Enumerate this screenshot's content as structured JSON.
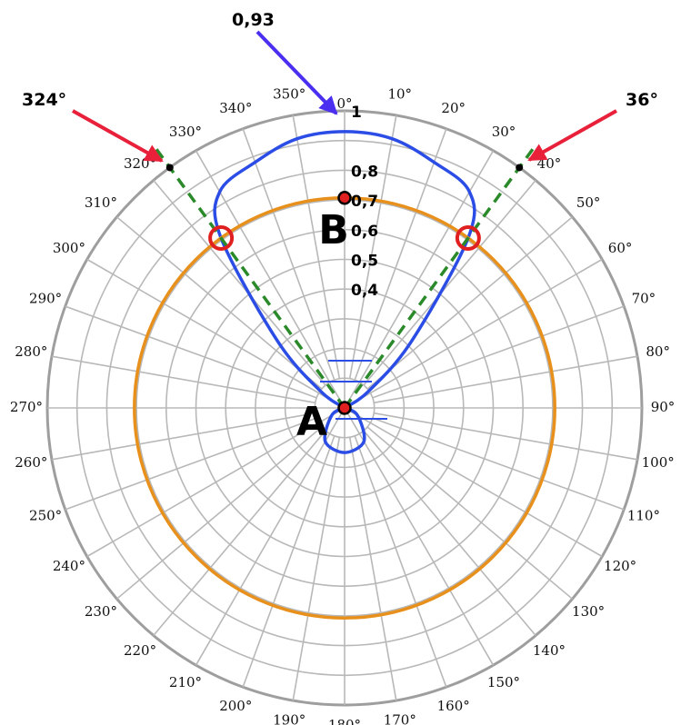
{
  "chart_data": {
    "type": "polar",
    "angle_unit": "degrees",
    "zero_direction": "top",
    "direction": "clockwise",
    "radial_range": [
      0,
      1
    ],
    "angle_ticks": [
      "0°",
      "10°",
      "20°",
      "30°",
      "40°",
      "50°",
      "60°",
      "70°",
      "80°",
      "90°",
      "100°",
      "110°",
      "120°",
      "130°",
      "140°",
      "150°",
      "160°",
      "170°",
      "180°",
      "190°",
      "200°",
      "210°",
      "220°",
      "230°",
      "240°",
      "250°",
      "260°",
      "270°",
      "280°",
      "290°",
      "300°",
      "310°",
      "320°",
      "330°",
      "340°",
      "350°"
    ],
    "radial_tick_labels": [
      {
        "text": "1",
        "r": 1.0
      },
      {
        "text": "0,8",
        "r": 0.8
      },
      {
        "text": "0,7",
        "r": 0.7
      },
      {
        "text": "0,6",
        "r": 0.6
      },
      {
        "text": "0,5",
        "r": 0.5
      },
      {
        "text": "0,4",
        "r": 0.4
      }
    ],
    "grid": true,
    "grid_rings": [
      0.1,
      0.2,
      0.3,
      0.4,
      0.5,
      0.6,
      0.7,
      0.8,
      0.9,
      1.0
    ],
    "series": [
      {
        "kind": "pattern",
        "color": "#2b4de6",
        "points": [
          {
            "angle": 0,
            "r": 0.93
          },
          {
            "angle": 10,
            "r": 0.92
          },
          {
            "angle": 20,
            "r": 0.88
          },
          {
            "angle": 30,
            "r": 0.84
          },
          {
            "angle": 36,
            "r": 0.707
          },
          {
            "angle": 45,
            "r": 0.32
          },
          {
            "angle": 55,
            "r": 0.1
          },
          {
            "angle": 60,
            "r": 0.0
          },
          {
            "angle": 90,
            "r": 0.0
          },
          {
            "angle": 120,
            "r": 0.05
          },
          {
            "angle": 150,
            "r": 0.13
          },
          {
            "angle": 180,
            "r": 0.15
          },
          {
            "angle": 210,
            "r": 0.13
          },
          {
            "angle": 240,
            "r": 0.05
          },
          {
            "angle": 270,
            "r": 0.0
          },
          {
            "angle": 300,
            "r": 0.0
          },
          {
            "angle": 305,
            "r": 0.1
          },
          {
            "angle": 315,
            "r": 0.32
          },
          {
            "angle": 324,
            "r": 0.707
          },
          {
            "angle": 330,
            "r": 0.84
          },
          {
            "angle": 340,
            "r": 0.88
          },
          {
            "angle": 350,
            "r": 0.92
          }
        ]
      },
      {
        "kind": "circle",
        "color": "#e8901c",
        "r": 0.707
      }
    ],
    "reference_lines": [
      {
        "angle": 36,
        "color": "#2a8a2a",
        "style": "dashed"
      },
      {
        "angle": 324,
        "color": "#2a8a2a",
        "style": "dashed"
      }
    ],
    "markers": [
      {
        "angle": 36,
        "r": 0.707,
        "color": "#e02020",
        "style": "ring"
      },
      {
        "angle": 324,
        "r": 0.707,
        "color": "#e02020",
        "style": "ring"
      },
      {
        "angle": 0,
        "r": 0.707,
        "color": "#e02020",
        "style": "dot",
        "label": "B"
      },
      {
        "angle": 0,
        "r": 0.0,
        "color": "#e02020",
        "style": "dot",
        "label": "A"
      }
    ],
    "annotations": [
      {
        "text": "0,93",
        "target_angle": 0,
        "target_r": 0.93,
        "arrow_color": "#4a2ff0"
      },
      {
        "text": "324°",
        "target_angle": 324,
        "target_r": 0.95,
        "arrow_color": "#e8203a"
      },
      {
        "text": "36°",
        "target_angle": 36,
        "target_r": 0.95,
        "arrow_color": "#e8203a"
      }
    ]
  }
}
